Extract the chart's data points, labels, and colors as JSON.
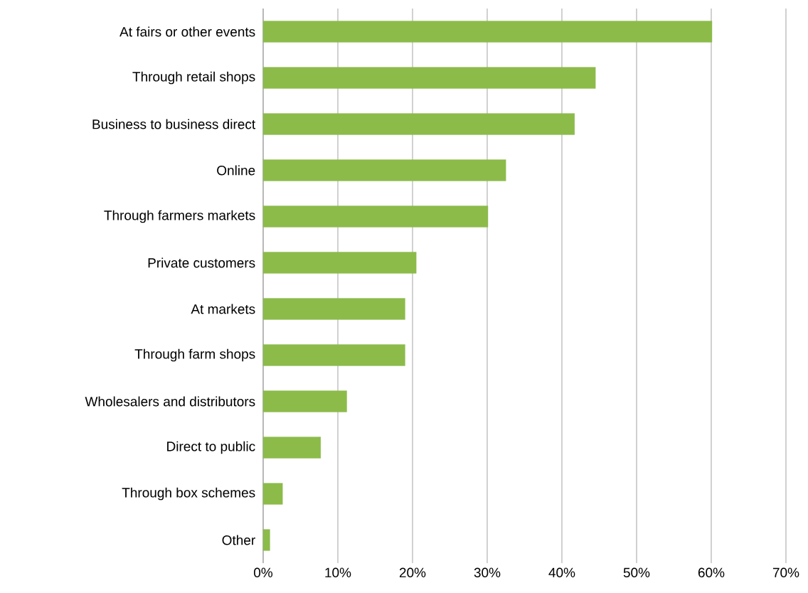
{
  "chart_data": {
    "type": "bar",
    "orientation": "horizontal",
    "categories": [
      "At fairs or other events",
      "Through retail shops",
      "Business to business direct",
      "Online",
      "Through farmers markets",
      "Private customers",
      "At markets",
      "Through farm shops",
      "Wholesalers and distributors",
      "Direct to public",
      "Through box schemes",
      "Other"
    ],
    "values": [
      60.1,
      44.5,
      41.7,
      32.5,
      30.1,
      20.5,
      19.0,
      19.0,
      11.2,
      7.7,
      2.6,
      0.9
    ],
    "color": "#8cbb4a",
    "xlim": [
      0,
      70
    ],
    "xticks": [
      {
        "value": 0,
        "label": "0%"
      },
      {
        "value": 10,
        "label": "10%"
      },
      {
        "value": 20,
        "label": "20%"
      },
      {
        "value": 30,
        "label": "30%"
      },
      {
        "value": 40,
        "label": "40%"
      },
      {
        "value": 50,
        "label": "50%"
      },
      {
        "value": 60,
        "label": "60%"
      },
      {
        "value": 70,
        "label": "70%"
      }
    ],
    "grid": "x"
  }
}
